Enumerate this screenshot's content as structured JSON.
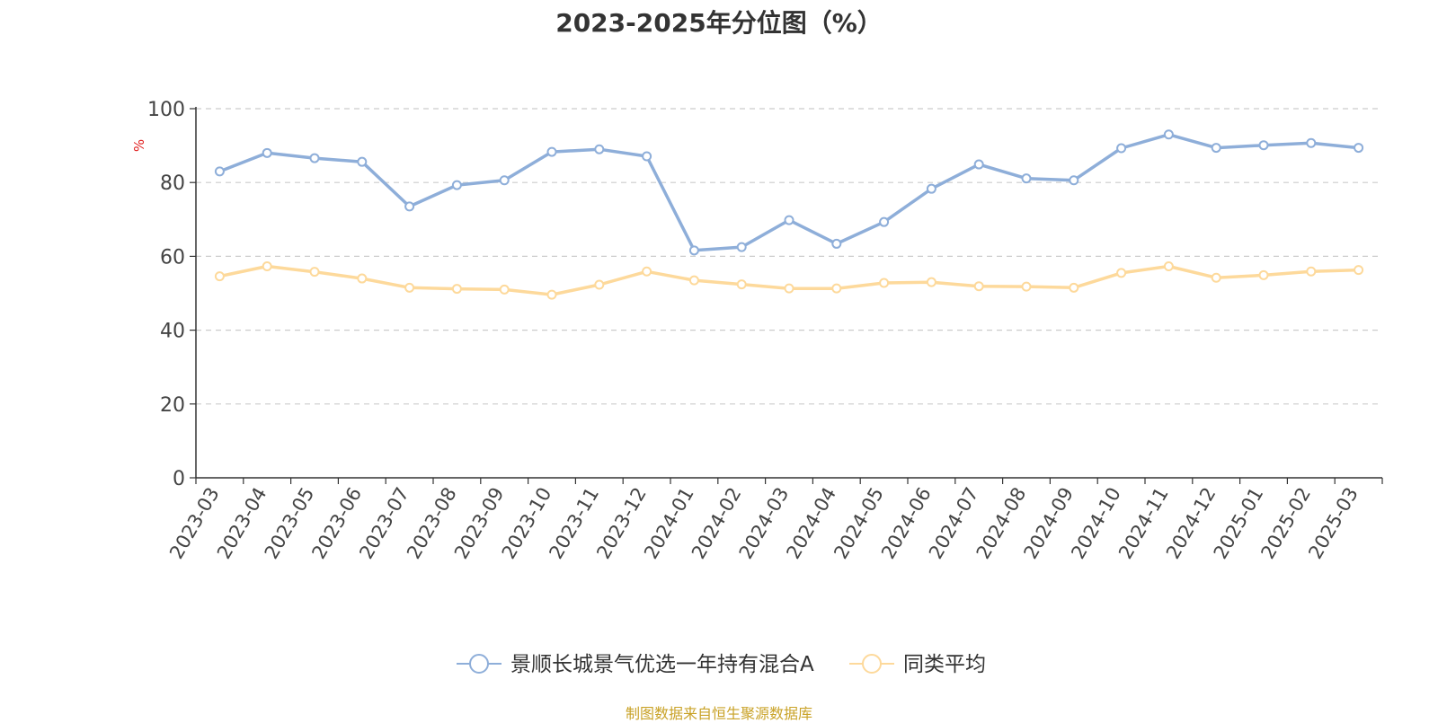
{
  "title": "2023-2025年分位图（%）",
  "source_note": "制图数据来自恒生聚源数据库",
  "chart_data": {
    "type": "line",
    "ylabel": "%",
    "ylim": [
      0,
      100
    ],
    "yticks": [
      0,
      20,
      40,
      60,
      80,
      100
    ],
    "grid": true,
    "legend_position": "bottom",
    "categories": [
      "2023-03",
      "2023-04",
      "2023-05",
      "2023-06",
      "2023-07",
      "2023-08",
      "2023-09",
      "2023-10",
      "2023-11",
      "2023-12",
      "2024-01",
      "2024-02",
      "2024-03",
      "2024-04",
      "2024-05",
      "2024-06",
      "2024-07",
      "2024-08",
      "2024-09",
      "2024-10",
      "2024-11",
      "2024-12",
      "2025-01",
      "2025-02",
      "2025-03"
    ],
    "series": [
      {
        "name": "景顺长城景气优选一年持有混合A",
        "color": "#8eaed9",
        "values": [
          83.0,
          88.0,
          86.6,
          85.6,
          73.5,
          79.3,
          80.6,
          88.3,
          89.0,
          87.1,
          61.6,
          62.5,
          69.8,
          63.4,
          69.3,
          78.3,
          84.9,
          81.1,
          80.6,
          89.3,
          93.0,
          89.4,
          90.1,
          90.7,
          89.4
        ]
      },
      {
        "name": "同类平均",
        "color": "#fdd99b",
        "values": [
          54.6,
          57.3,
          55.8,
          54.0,
          51.5,
          51.2,
          51.0,
          49.6,
          52.3,
          55.9,
          53.5,
          52.4,
          51.3,
          51.3,
          52.8,
          53.0,
          51.9,
          51.8,
          51.5,
          55.5,
          57.3,
          54.2,
          54.9,
          55.9,
          56.3
        ]
      }
    ]
  }
}
